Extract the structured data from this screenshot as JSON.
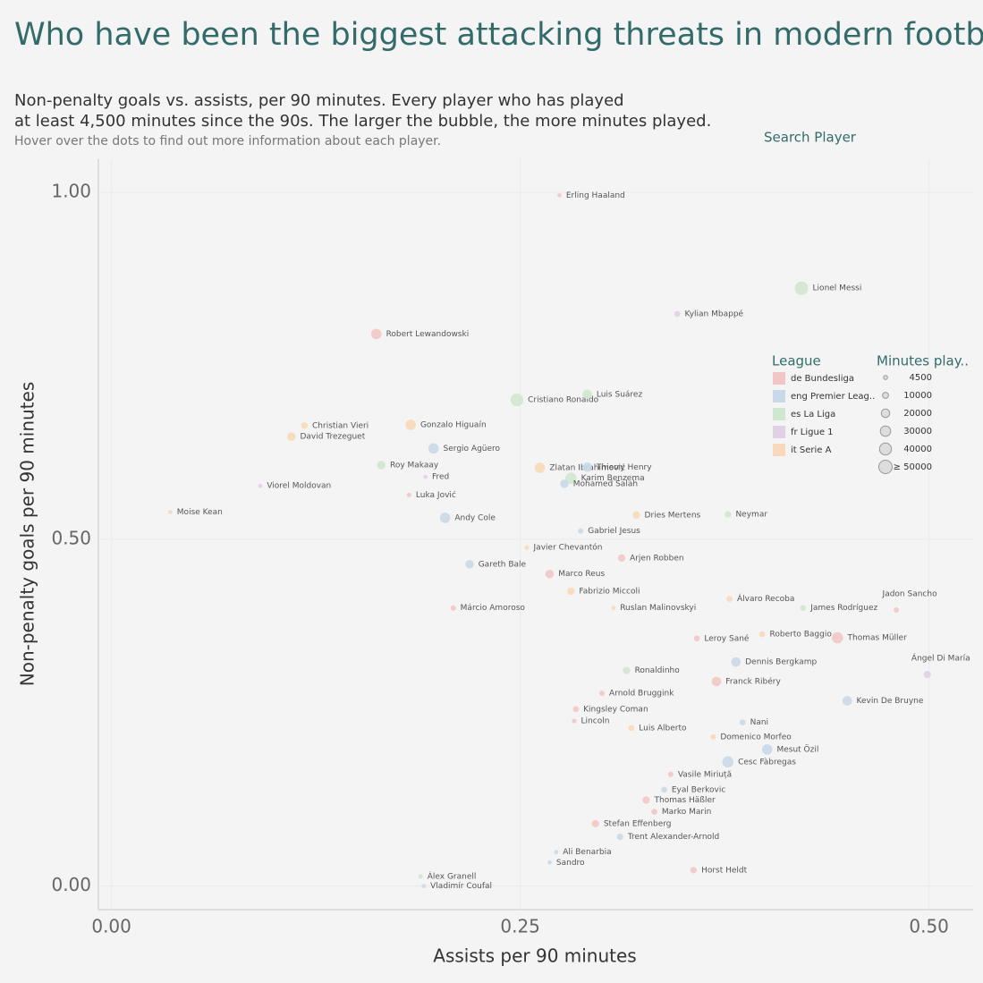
{
  "chart_data": {
    "type": "scatter",
    "title": "Who have been the biggest attacking threats in modern football?",
    "subtitle": [
      "Non-penalty goals vs. assists, per 90 minutes. Every player who has played",
      "at least 4,500 minutes since the 90s. The larger the bubble, the more minutes played."
    ],
    "note": "Hover over the dots to find out more information about each player.",
    "search_label": "Search Player",
    "x_label": "Assists per 90 minutes",
    "y_label": "Non-penalty goals per 90 minutes",
    "xlim": [
      -0.008,
      0.527
    ],
    "ylim": [
      -0.034,
      1.048
    ],
    "xticks": [
      {
        "value": 0,
        "label": "0.00"
      },
      {
        "value": 0.25,
        "label": "0.25"
      },
      {
        "value": 0.5,
        "label": "0.50"
      }
    ],
    "yticks": [
      {
        "value": 0,
        "label": "0.00"
      },
      {
        "value": 0.5,
        "label": "0.50"
      },
      {
        "value": 1,
        "label": "1.00"
      }
    ],
    "grid": true,
    "legend_title": "League",
    "size_legend": {
      "title": "Minutes play..",
      "values": [
        4500,
        10000,
        20000,
        30000,
        40000,
        {
          "value": 50000,
          "label": "≥ 50000"
        }
      ]
    },
    "series": [
      {
        "name": "de Bundesliga",
        "color": "#f2c6c6",
        "labels": [
          "Erling Haaland",
          "Robert Lewandowski",
          "Luka Jović",
          "Arjen Robben",
          "Marco Reus",
          "Márcio Amoroso",
          "Jadon Sancho",
          "Leroy Sané",
          "Thomas Müller",
          "Franck Ribéry",
          "Arnold Bruggink",
          "Kingsley Coman",
          "Lincoln",
          "Vasile Miriuță",
          "Thomas Häßler",
          "Marko Marin",
          "Stefan Effenberg",
          "Horst Heldt"
        ],
        "x": [
          0.274,
          0.162,
          0.182,
          0.312,
          0.268,
          0.209,
          0.48,
          0.358,
          0.444,
          0.37,
          0.3,
          0.284,
          0.283,
          0.342,
          0.327,
          0.332,
          0.296,
          0.356
        ],
        "values": [
          0.996,
          0.796,
          0.564,
          0.473,
          0.45,
          0.401,
          0.398,
          0.357,
          0.358,
          0.295,
          0.278,
          0.255,
          0.238,
          0.161,
          0.124,
          0.107,
          0.09,
          0.023
        ],
        "sizes": [
          5000,
          30000,
          6000,
          15000,
          20000,
          8000,
          8000,
          10000,
          35000,
          25000,
          8000,
          10000,
          6000,
          8000,
          15000,
          10000,
          15000,
          12000
        ]
      },
      {
        "name": "eng Premier Leag..",
        "color": "#c9d9e7",
        "labels": [
          "Sergio Agüero",
          "Thierry Henry",
          "Mohamed Salah",
          "Andy Cole",
          "Gabriel Jesus",
          "Gareth Bale",
          "Dennis Bergkamp",
          "Kevin De Bruyne",
          "Nani",
          "Mesut Özil",
          "Cesc Fàbregas",
          "Eyal Berkovic",
          "Trent Alexander-Arnold",
          "Ali Benarbia",
          "Sandro",
          "Vladimír Coufal"
        ],
        "x": [
          0.197,
          0.291,
          0.277,
          0.204,
          0.287,
          0.219,
          0.382,
          0.45,
          0.386,
          0.401,
          0.377,
          0.338,
          0.311,
          0.272,
          0.268,
          0.191
        ],
        "values": [
          0.631,
          0.604,
          0.58,
          0.531,
          0.512,
          0.464,
          0.323,
          0.267,
          0.236,
          0.197,
          0.179,
          0.139,
          0.071,
          0.049,
          0.034,
          0.0
        ],
        "sizes": [
          30000,
          25000,
          20000,
          30000,
          8000,
          20000,
          25000,
          25000,
          10000,
          30000,
          35000,
          10000,
          12000,
          5000,
          5000,
          5000
        ]
      },
      {
        "name": "es La Liga",
        "color": "#d0e7cf",
        "labels": [
          "Lionel Messi",
          "Cristiano Ronaldo",
          "Luis Suárez",
          "Roy Makaay",
          "Karim Benzema",
          "Neymar",
          "James Rodríguez",
          "Ronaldinho",
          "Álex Granell"
        ],
        "x": [
          0.422,
          0.248,
          0.291,
          0.165,
          0.281,
          0.377,
          0.423,
          0.315,
          0.189
        ],
        "values": [
          0.862,
          0.701,
          0.709,
          0.607,
          0.588,
          0.536,
          0.401,
          0.311,
          0.014
        ],
        "sizes": [
          50000,
          45000,
          25000,
          20000,
          35000,
          12000,
          10000,
          15000,
          6000
        ]
      },
      {
        "name": "fr Ligue 1",
        "color": "#e2d0e7",
        "labels": [
          "Kylian Mbappé",
          "Fred",
          "Viorel Moldovan",
          "Ángel Di María"
        ],
        "x": [
          0.346,
          0.192,
          0.091,
          0.499
        ],
        "values": [
          0.825,
          0.59,
          0.577,
          0.305
        ],
        "sizes": [
          10000,
          5000,
          5000,
          15000
        ]
      },
      {
        "name": "it Serie A",
        "color": "#f8d9b9",
        "labels": [
          "Christian Vieri",
          "Gonzalo Higuaín",
          "David Trezeguet",
          "Zlatan Ibrahimović",
          "Moise Kean",
          "Dries Mertens",
          "Javier Chevantón",
          "Fabrizio Miccoli",
          "Álvaro Recoba",
          "Ruslan Malinovskyi",
          "Roberto Baggio",
          "Luis Alberto",
          "Domenico Morfeo"
        ],
        "x": [
          0.118,
          0.183,
          0.11,
          0.262,
          0.036,
          0.321,
          0.254,
          0.281,
          0.378,
          0.307,
          0.398,
          0.318,
          0.368
        ],
        "values": [
          0.664,
          0.665,
          0.648,
          0.603,
          0.539,
          0.535,
          0.488,
          0.425,
          0.414,
          0.401,
          0.363,
          0.228,
          0.215
        ],
        "sizes": [
          12000,
          30000,
          20000,
          30000,
          5000,
          15000,
          6000,
          15000,
          10000,
          5000,
          10000,
          10000,
          8000
        ]
      }
    ]
  }
}
